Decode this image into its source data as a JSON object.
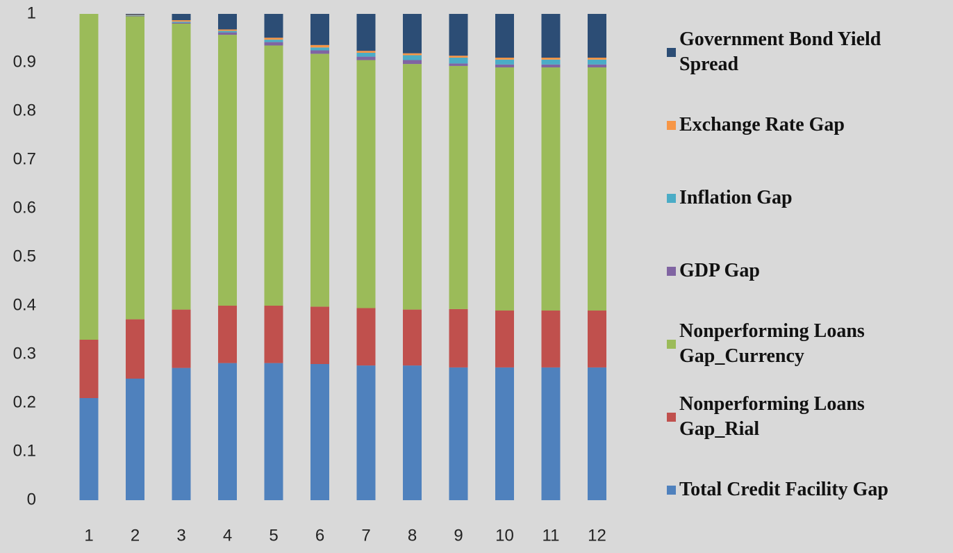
{
  "chart_data": {
    "type": "bar",
    "stacked": true,
    "categories": [
      "1",
      "2",
      "3",
      "4",
      "5",
      "6",
      "7",
      "8",
      "9",
      "10",
      "11",
      "12"
    ],
    "series": [
      {
        "name": "Total Credit Facility Gap",
        "color": "#4f81bd",
        "values": [
          0.21,
          0.25,
          0.272,
          0.282,
          0.282,
          0.28,
          0.277,
          0.277,
          0.273,
          0.273,
          0.273,
          0.273
        ]
      },
      {
        "name": "Nonperforming Loans Gap_Rial",
        "color": "#c0504d",
        "values": [
          0.12,
          0.122,
          0.12,
          0.118,
          0.118,
          0.118,
          0.118,
          0.115,
          0.12,
          0.117,
          0.117,
          0.117
        ]
      },
      {
        "name": "Nonperforming Loans Gap_Currency",
        "color": "#9bbb59",
        "values": [
          0.67,
          0.623,
          0.588,
          0.557,
          0.535,
          0.52,
          0.51,
          0.505,
          0.5,
          0.5,
          0.5,
          0.5
        ]
      },
      {
        "name": "GDP Gap",
        "color": "#8064a2",
        "values": [
          0,
          0.001,
          0.002,
          0.005,
          0.007,
          0.007,
          0.007,
          0.008,
          0.005,
          0.006,
          0.006,
          0.006
        ]
      },
      {
        "name": "Inflation Gap",
        "color": "#4bacc6",
        "values": [
          0,
          0.001,
          0.002,
          0.003,
          0.005,
          0.006,
          0.008,
          0.01,
          0.012,
          0.01,
          0.01,
          0.01
        ]
      },
      {
        "name": "Exchange Rate Gap",
        "color": "#f79646",
        "values": [
          0,
          0.001,
          0.003,
          0.003,
          0.004,
          0.005,
          0.004,
          0.004,
          0.004,
          0.004,
          0.004,
          0.004
        ]
      },
      {
        "name": "Government Bond Yield Spread",
        "color": "#2c4d75",
        "values": [
          0,
          0.002,
          0.013,
          0.032,
          0.049,
          0.064,
          0.076,
          0.081,
          0.086,
          0.09,
          0.09,
          0.09
        ]
      }
    ],
    "ylim": [
      0,
      1
    ],
    "yticks": [
      0,
      0.1,
      0.2,
      0.3,
      0.4,
      0.5,
      0.6,
      0.7,
      0.8,
      0.9,
      1
    ],
    "legend": "right",
    "grid": false
  }
}
